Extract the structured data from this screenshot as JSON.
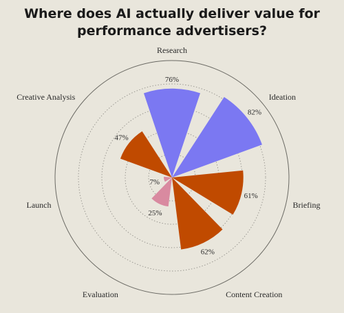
{
  "chart_data": {
    "type": "radial-bar",
    "title_lines": [
      "Where does AI actually deliver value for",
      "performance advertisers?"
    ],
    "unit": "%",
    "rmax": 100,
    "rings": [
      20,
      40,
      60,
      80
    ],
    "categories": [
      "Research",
      "Ideation",
      "Briefing",
      "Content Creation",
      "Evaluation",
      "Launch",
      "Creative Analysis"
    ],
    "values": [
      76,
      82,
      61,
      62,
      25,
      7,
      47
    ],
    "value_labels": [
      "76%",
      "82%",
      "61%",
      "62%",
      "25%",
      "7%",
      "47%"
    ],
    "colors": [
      "#7b78f2",
      "#7b78f2",
      "#c04a00",
      "#c04a00",
      "#d98aa0",
      "#d98aa0",
      "#c04a00"
    ],
    "grid": "dotted concentric rings"
  }
}
